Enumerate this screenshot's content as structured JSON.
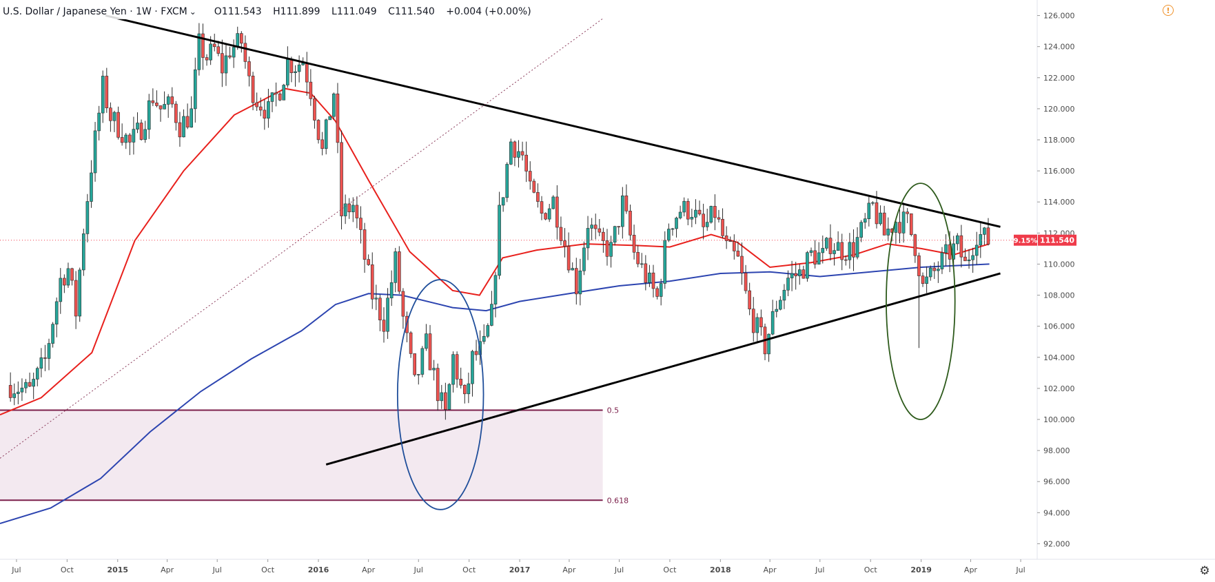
{
  "header": {
    "symbol": "U.S. Dollar / Japanese Yen · 1W · FXCM",
    "open": "O111.543",
    "high": "H111.899",
    "low": "L111.049",
    "close": "C111.540",
    "change": "+0.004 (+0.00%)"
  },
  "price_tags": {
    "percent": "9.15%",
    "last": "111.540"
  },
  "fib_labels": {
    "level_05": "0.5",
    "level_0618": "0.618"
  },
  "colors": {
    "up": "#26a69a",
    "down": "#ef5350",
    "ma_fast": "#e8201c",
    "ma_slow": "#2c44b0",
    "fib_line": "#7b1f4a",
    "fib_fill": "#f3e9f0",
    "trendline": "#000000",
    "circle_blue": "#1f4e9a",
    "circle_green": "#2d5a1b",
    "tag_red": "#ef3b4a"
  },
  "chart_data": {
    "type": "candlestick",
    "title": "U.S. Dollar / Japanese Yen · 1W · FXCM",
    "interval": "weekly",
    "ylim": [
      91,
      127
    ],
    "y_ticks": [
      "126.000",
      "124.000",
      "122.000",
      "120.000",
      "118.000",
      "116.000",
      "114.000",
      "112.000",
      "110.000",
      "108.000",
      "106.000",
      "104.000",
      "102.000",
      "100.000",
      "98.000",
      "96.000",
      "94.000",
      "92.000"
    ],
    "x_ticks": [
      "Jul",
      "Oct",
      "2015",
      "Apr",
      "Jul",
      "Oct",
      "2016",
      "Apr",
      "Jul",
      "Oct",
      "2017",
      "Apr",
      "Jul",
      "Oct",
      "2018",
      "Apr",
      "Jul",
      "Oct",
      "2019",
      "Apr",
      "Jul"
    ],
    "x_range": [
      "2014-06-01",
      "2019-07-31"
    ],
    "last_close": 111.54,
    "series": [
      {
        "name": "USDJPY weekly",
        "kind": "candles_close",
        "points": [
          [
            "2014-06-20",
            102.2
          ],
          [
            "2014-07-25",
            101.8
          ],
          [
            "2014-08-22",
            103.8
          ],
          [
            "2014-09-19",
            109.0
          ],
          [
            "2014-10-03",
            109.7
          ],
          [
            "2014-10-17",
            106.9
          ],
          [
            "2014-10-31",
            112.3
          ],
          [
            "2014-11-14",
            116.3
          ],
          [
            "2014-12-05",
            121.4
          ],
          [
            "2014-12-19",
            119.5
          ],
          [
            "2015-01-09",
            118.5
          ],
          [
            "2015-01-23",
            117.7
          ],
          [
            "2015-02-13",
            118.8
          ],
          [
            "2015-03-06",
            120.8
          ],
          [
            "2015-03-20",
            120.0
          ],
          [
            "2015-04-10",
            120.2
          ],
          [
            "2015-04-24",
            118.9
          ],
          [
            "2015-05-15",
            119.7
          ],
          [
            "2015-05-29",
            124.1
          ],
          [
            "2015-06-12",
            123.3
          ],
          [
            "2015-06-26",
            123.8
          ],
          [
            "2015-07-10",
            122.6
          ],
          [
            "2015-07-24",
            123.8
          ],
          [
            "2015-08-14",
            124.3
          ],
          [
            "2015-08-28",
            121.7
          ],
          [
            "2015-09-11",
            120.6
          ],
          [
            "2015-10-02",
            119.8
          ],
          [
            "2015-10-23",
            121.3
          ],
          [
            "2015-11-06",
            123.0
          ],
          [
            "2015-11-20",
            122.8
          ],
          [
            "2015-12-04",
            123.1
          ],
          [
            "2015-12-18",
            121.2
          ],
          [
            "2016-01-08",
            117.2
          ],
          [
            "2016-01-29",
            121.1
          ],
          [
            "2016-02-12",
            113.2
          ],
          [
            "2016-03-04",
            113.8
          ],
          [
            "2016-03-18",
            111.6
          ],
          [
            "2016-04-08",
            108.0
          ],
          [
            "2016-04-29",
            106.3
          ],
          [
            "2016-05-20",
            110.2
          ],
          [
            "2016-06-03",
            106.5
          ],
          [
            "2016-06-24",
            102.2
          ],
          [
            "2016-07-15",
            104.8
          ],
          [
            "2016-08-05",
            101.8
          ],
          [
            "2016-08-19",
            100.2
          ],
          [
            "2016-09-02",
            104.0
          ],
          [
            "2016-09-23",
            101.0
          ],
          [
            "2016-10-07",
            103.9
          ],
          [
            "2016-10-28",
            104.7
          ],
          [
            "2016-11-11",
            106.7
          ],
          [
            "2016-11-25",
            113.2
          ],
          [
            "2016-12-16",
            117.9
          ],
          [
            "2017-01-06",
            117.0
          ],
          [
            "2017-01-20",
            114.6
          ],
          [
            "2017-02-10",
            113.2
          ],
          [
            "2017-03-03",
            114.1
          ],
          [
            "2017-03-24",
            111.3
          ],
          [
            "2017-04-14",
            108.6
          ],
          [
            "2017-05-05",
            112.7
          ],
          [
            "2017-05-26",
            111.3
          ],
          [
            "2017-06-16",
            110.9
          ],
          [
            "2017-07-07",
            113.9
          ],
          [
            "2017-07-28",
            110.7
          ],
          [
            "2017-08-18",
            109.2
          ],
          [
            "2017-09-08",
            107.8
          ],
          [
            "2017-09-29",
            112.5
          ],
          [
            "2017-10-20",
            113.5
          ],
          [
            "2017-11-10",
            113.5
          ],
          [
            "2017-12-01",
            112.2
          ],
          [
            "2017-12-22",
            113.3
          ],
          [
            "2018-01-12",
            111.0
          ],
          [
            "2018-02-02",
            110.2
          ],
          [
            "2018-02-23",
            106.9
          ],
          [
            "2018-03-23",
            104.7
          ],
          [
            "2018-04-13",
            107.4
          ],
          [
            "2018-05-04",
            109.1
          ],
          [
            "2018-05-25",
            109.4
          ],
          [
            "2018-06-15",
            110.6
          ],
          [
            "2018-07-06",
            110.5
          ],
          [
            "2018-07-20",
            111.4
          ],
          [
            "2018-08-10",
            110.9
          ],
          [
            "2018-08-31",
            111.0
          ],
          [
            "2018-09-21",
            112.6
          ],
          [
            "2018-10-05",
            113.7
          ],
          [
            "2018-10-26",
            111.9
          ],
          [
            "2018-11-16",
            112.8
          ],
          [
            "2018-12-07",
            112.7
          ],
          [
            "2018-12-21",
            111.2
          ],
          [
            "2019-01-04",
            108.5
          ],
          [
            "2019-01-25",
            109.5
          ],
          [
            "2019-02-15",
            110.5
          ],
          [
            "2019-03-08",
            111.2
          ],
          [
            "2019-03-22",
            109.9
          ],
          [
            "2019-04-12",
            112.0
          ],
          [
            "2019-05-03",
            111.5
          ]
        ]
      },
      {
        "name": "MA fast",
        "kind": "line",
        "points": [
          [
            "2014-06-01",
            100.3
          ],
          [
            "2014-08-15",
            101.4
          ],
          [
            "2014-11-15",
            104.3
          ],
          [
            "2015-02-01",
            111.5
          ],
          [
            "2015-05-01",
            116.0
          ],
          [
            "2015-08-01",
            119.6
          ],
          [
            "2015-11-01",
            121.3
          ],
          [
            "2015-12-18",
            121.0
          ],
          [
            "2016-02-01",
            119.2
          ],
          [
            "2016-04-01",
            115.4
          ],
          [
            "2016-06-15",
            110.8
          ],
          [
            "2016-09-01",
            108.3
          ],
          [
            "2016-10-20",
            108.0
          ],
          [
            "2016-12-01",
            110.4
          ],
          [
            "2017-02-01",
            110.9
          ],
          [
            "2017-05-01",
            111.3
          ],
          [
            "2017-08-01",
            111.2
          ],
          [
            "2017-10-01",
            111.1
          ],
          [
            "2017-12-15",
            111.9
          ],
          [
            "2018-02-01",
            111.4
          ],
          [
            "2018-04-01",
            109.8
          ],
          [
            "2018-06-15",
            110.1
          ],
          [
            "2018-09-01",
            110.6
          ],
          [
            "2018-11-01",
            111.3
          ],
          [
            "2019-01-01",
            111.0
          ],
          [
            "2019-03-01",
            110.6
          ],
          [
            "2019-05-05",
            111.3
          ]
        ]
      },
      {
        "name": "MA slow",
        "kind": "line",
        "points": [
          [
            "2014-06-01",
            93.3
          ],
          [
            "2014-09-01",
            94.3
          ],
          [
            "2014-12-01",
            96.2
          ],
          [
            "2015-03-01",
            99.2
          ],
          [
            "2015-06-01",
            101.8
          ],
          [
            "2015-09-01",
            103.9
          ],
          [
            "2015-12-01",
            105.7
          ],
          [
            "2016-02-01",
            107.4
          ],
          [
            "2016-04-01",
            108.1
          ],
          [
            "2016-06-01",
            108.0
          ],
          [
            "2016-09-01",
            107.2
          ],
          [
            "2016-11-01",
            107.0
          ],
          [
            "2017-01-01",
            107.6
          ],
          [
            "2017-04-01",
            108.1
          ],
          [
            "2017-07-01",
            108.6
          ],
          [
            "2017-10-01",
            108.9
          ],
          [
            "2018-01-01",
            109.4
          ],
          [
            "2018-04-01",
            109.5
          ],
          [
            "2018-07-01",
            109.2
          ],
          [
            "2018-10-01",
            109.5
          ],
          [
            "2019-01-01",
            109.8
          ],
          [
            "2019-05-05",
            110.0
          ]
        ]
      }
    ],
    "fibonacci": [
      {
        "label": "0.5",
        "value": 100.6
      },
      {
        "label": "0.618",
        "value": 94.8
      }
    ],
    "annotations": {
      "upper_trendline": [
        [
          "2014-12-10",
          126.0
        ],
        [
          "2019-05-25",
          112.4
        ]
      ],
      "lower_trendline": [
        [
          "2016-01-15",
          97.1
        ],
        [
          "2019-05-25",
          109.4
        ]
      ],
      "dotted_line": [
        [
          "2014-06-01",
          97.5
        ],
        [
          "2017-06-01",
          125.8
        ]
      ],
      "blue_ellipse": {
        "center": [
          "2016-08-10",
          101.6
        ],
        "span_days": 125,
        "span_price": 7.4
      },
      "green_ellipse": {
        "center": [
          "2018-12-31",
          107.6
        ],
        "span_days": 100,
        "span_price": 7.6
      }
    }
  }
}
